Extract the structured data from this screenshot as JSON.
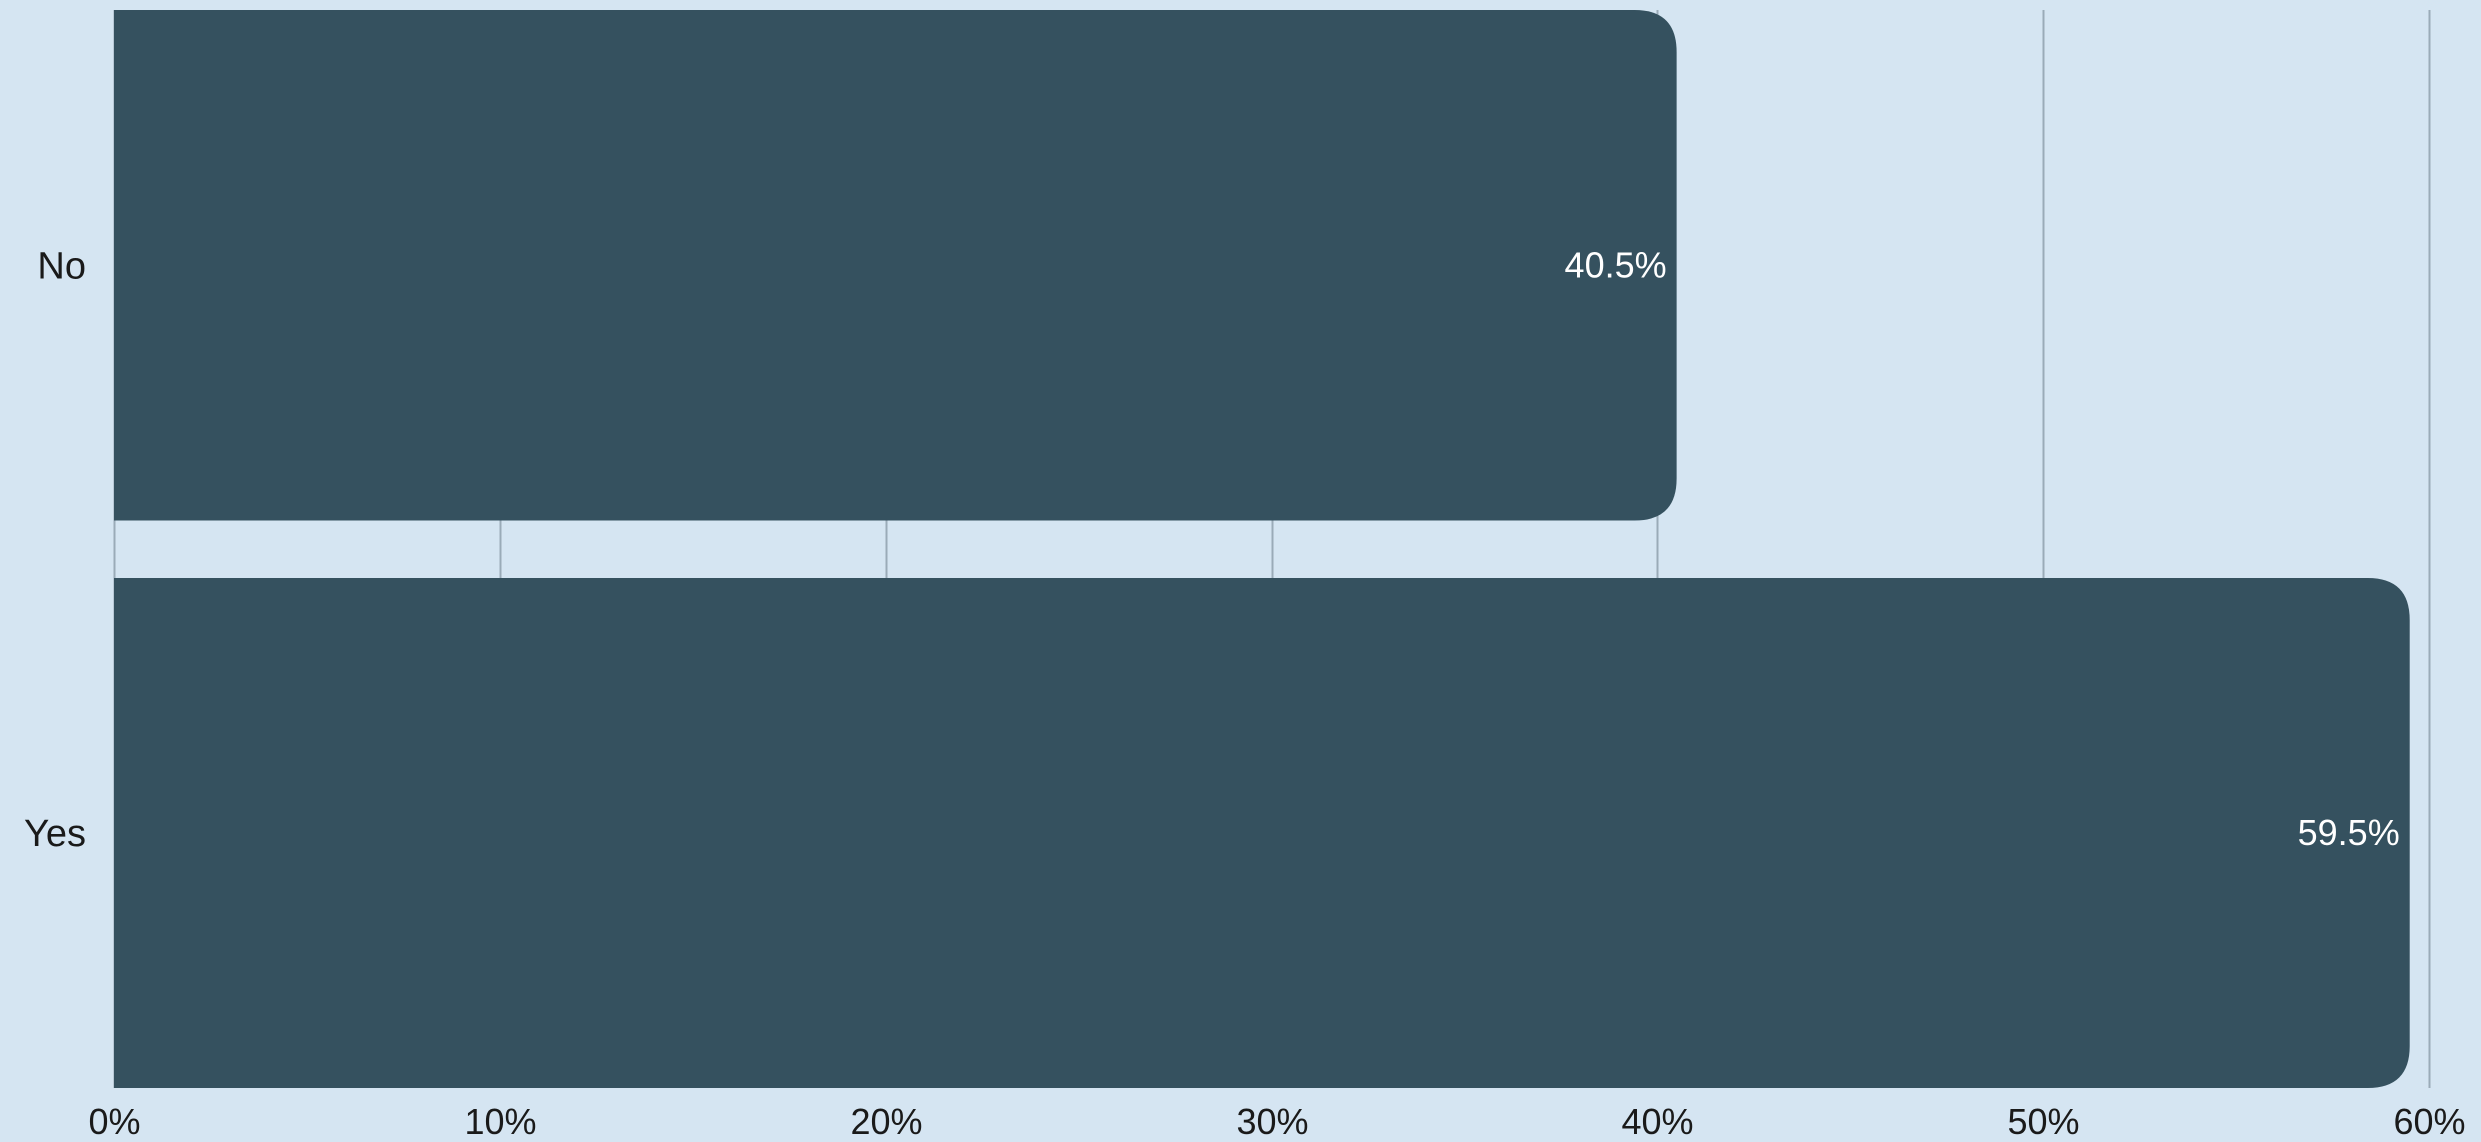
{
  "chart_data": {
    "type": "bar",
    "orientation": "horizontal",
    "categories": [
      "No",
      "Yes"
    ],
    "values": [
      40.5,
      59.5
    ],
    "data_labels": [
      "40.5%",
      "59.5%"
    ],
    "title": "",
    "xlabel": "",
    "ylabel": "",
    "xlim": [
      0,
      60
    ],
    "x_ticks": [
      0,
      10,
      20,
      30,
      40,
      50,
      60
    ],
    "x_tick_labels": [
      "0%",
      "10%",
      "20%",
      "30%",
      "40%",
      "50%",
      "60%"
    ],
    "grid": true,
    "legend": "none",
    "colors": {
      "background": "#d5e5f2",
      "bar": "#35515f",
      "grid": "#9aabb8",
      "text": "#1a1a1a",
      "data_label": "#ffffff"
    }
  }
}
